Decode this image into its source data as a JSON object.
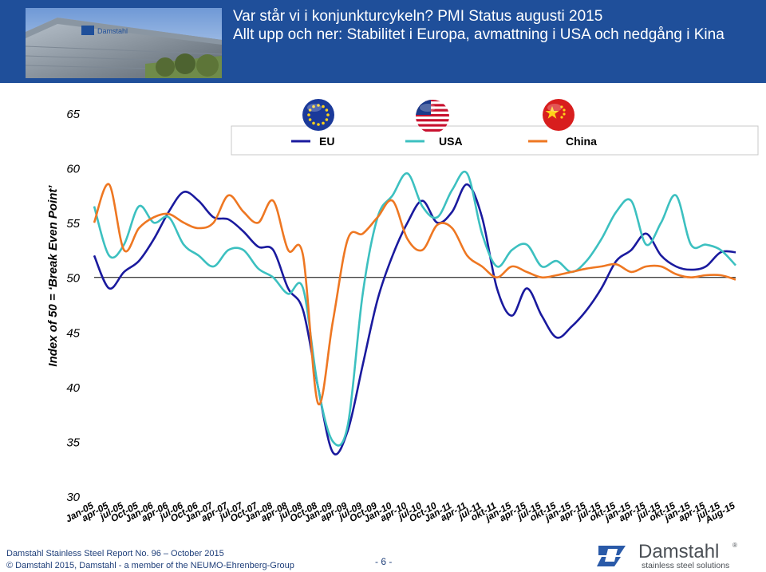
{
  "header": {
    "title_line1": "Var står vi i konjunkturcykeln?  PMI Status augusti 2015",
    "title_line2": "Allt upp och ner: Stabilitet i Europa, avmattning i USA och nedgång i Kina",
    "photo_logo_text": "Damstahl"
  },
  "footer": {
    "report": "Damstahl Stainless Steel Report No. 96 – October 2015",
    "copyright": "© Damstahl 2015, Damstahl - a member of the NEUMO-Ehrenberg-Group",
    "page": "- 6 -",
    "logo_name": "Damstahl",
    "logo_registered": "®",
    "logo_tagline": "stainless steel solutions"
  },
  "chart_data": {
    "type": "line",
    "ylabel": "Index of 50 = ‘Break Even Point’",
    "ylim": [
      30,
      65
    ],
    "yticks": [
      30,
      35,
      40,
      45,
      50,
      55,
      60,
      65
    ],
    "reference_line": 50,
    "grid": false,
    "legend_position": "top-right",
    "x": [
      "Jan-05",
      "apr-05",
      "jul-05",
      "Oct-05",
      "Jan-06",
      "apr-06",
      "jul-06",
      "Oct-06",
      "Jan-07",
      "apr-07",
      "jul-07",
      "Oct-07",
      "Jan-08",
      "apr-08",
      "jul-08",
      "Oct-08",
      "Jan-09",
      "apr-09",
      "jul-09",
      "Oct-09",
      "Jan-10",
      "apr-10",
      "jul-10",
      "Oct-10",
      "Jan-11",
      "apr-11",
      "jul-11",
      "okt-11",
      "jan-15",
      "apr-15",
      "jul-15",
      "okt-15",
      "jan-15",
      "apr-15",
      "jul-15",
      "okt-15",
      "jan-15",
      "apr-15",
      "jul-15",
      "okt-15",
      "jan-15",
      "apr-15",
      "jul-15",
      "Aug-15"
    ],
    "series": [
      {
        "name": "EU",
        "color": "#1a1a9e",
        "values": [
          52.0,
          49.0,
          50.5,
          51.5,
          53.5,
          56.0,
          57.8,
          57.0,
          55.5,
          55.3,
          54.2,
          52.8,
          52.5,
          49.0,
          47.0,
          40.0,
          34.0,
          36.0,
          42.0,
          48.0,
          52.0,
          55.0,
          57.0,
          55.0,
          56.0,
          58.5,
          55.5,
          49.0,
          46.5,
          49.0,
          46.5,
          44.5,
          45.5,
          47.0,
          49.0,
          51.5,
          52.5,
          54.0,
          52.0,
          51.0,
          50.7,
          51.0,
          52.3,
          52.3
        ]
      },
      {
        "name": "USA",
        "color": "#3cc0c0",
        "values": [
          56.5,
          52.0,
          53.0,
          56.5,
          55.0,
          55.5,
          53.0,
          52.0,
          51.0,
          52.5,
          52.5,
          50.8,
          50.0,
          48.5,
          49.0,
          40.0,
          35.0,
          36.5,
          48.5,
          55.5,
          57.5,
          59.5,
          56.5,
          55.5,
          58.0,
          59.5,
          54.0,
          51.0,
          52.5,
          53.0,
          51.0,
          51.5,
          50.5,
          51.5,
          53.5,
          56.0,
          57.0,
          53.0,
          55.0,
          57.5,
          53.0,
          53.0,
          52.5,
          51.1
        ]
      },
      {
        "name": "China",
        "color": "#ee7722",
        "values": [
          55.0,
          58.5,
          52.5,
          54.5,
          55.5,
          55.8,
          55.0,
          54.5,
          55.0,
          57.5,
          56.0,
          55.0,
          57.0,
          52.5,
          52.0,
          38.5,
          46.0,
          53.5,
          54.0,
          55.5,
          57.0,
          53.5,
          52.5,
          54.8,
          54.5,
          52.0,
          51.0,
          50.0,
          51.0,
          50.5,
          50.0,
          50.2,
          50.5,
          50.8,
          51.0,
          51.2,
          50.5,
          51.0,
          51.0,
          50.3,
          50.0,
          50.2,
          50.2,
          49.8
        ]
      }
    ]
  }
}
